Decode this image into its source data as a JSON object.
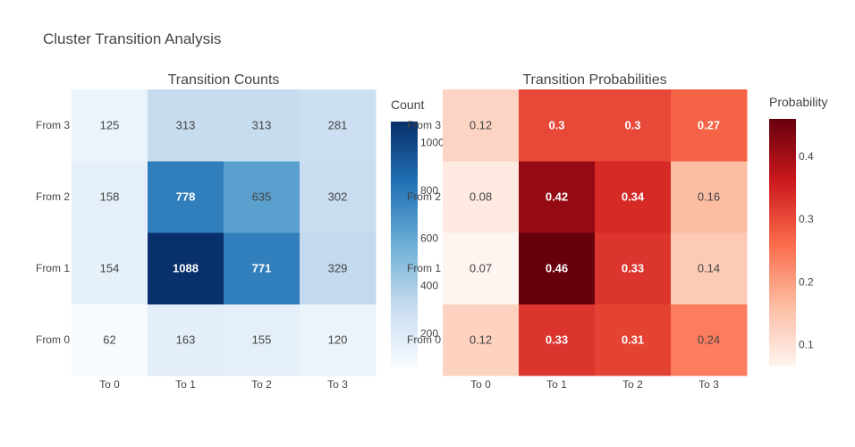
{
  "title": "Cluster Transition Analysis",
  "chart_data": [
    {
      "type": "heatmap",
      "title": "Transition Counts",
      "x_categories": [
        "To 0",
        "To 1",
        "To 2",
        "To 3"
      ],
      "y_categories": [
        "From 0",
        "From 1",
        "From 2",
        "From 3"
      ],
      "z": [
        [
          62,
          163,
          155,
          120
        ],
        [
          154,
          1088,
          771,
          329
        ],
        [
          158,
          778,
          635,
          302
        ],
        [
          125,
          313,
          313,
          281
        ]
      ],
      "cell_labels": [
        [
          "62",
          "163",
          "155",
          "120"
        ],
        [
          "154",
          "1088",
          "771",
          "329"
        ],
        [
          "158",
          "778",
          "635",
          "302"
        ],
        [
          "125",
          "313",
          "313",
          "281"
        ]
      ],
      "colorscale": "Blues",
      "colorscale_stops": [
        "#f7fbff",
        "#c6dbef",
        "#6baed6",
        "#2171b5",
        "#08306b"
      ],
      "zrange": [
        62,
        1088
      ],
      "colorbar": {
        "title": "Count",
        "ticks": [
          200,
          400,
          600,
          800,
          1000
        ],
        "tick_labels": [
          "200",
          "400",
          "600",
          "800",
          "1000"
        ]
      }
    },
    {
      "type": "heatmap",
      "title": "Transition Probabilities",
      "x_categories": [
        "To 0",
        "To 1",
        "To 2",
        "To 3"
      ],
      "y_categories": [
        "From 0",
        "From 1",
        "From 2",
        "From 3"
      ],
      "z": [
        [
          0.124,
          0.326,
          0.31,
          0.24
        ],
        [
          0.065,
          0.46,
          0.326,
          0.139
        ],
        [
          0.084,
          0.415,
          0.339,
          0.161
        ],
        [
          0.121,
          0.303,
          0.303,
          0.272
        ]
      ],
      "cell_labels": [
        [
          "0.12",
          "0.33",
          "0.31",
          "0.24"
        ],
        [
          "0.07",
          "0.46",
          "0.33",
          "0.14"
        ],
        [
          "0.08",
          "0.42",
          "0.34",
          "0.16"
        ],
        [
          "0.12",
          "0.3",
          "0.3",
          "0.27"
        ]
      ],
      "colorscale": "Reds",
      "colorscale_stops": [
        "#fff5f0",
        "#fcbba1",
        "#fb6a4a",
        "#cb181d",
        "#67000d"
      ],
      "zrange": [
        0.065,
        0.46
      ],
      "colorbar": {
        "title": "Probability",
        "ticks": [
          0.1,
          0.2,
          0.3,
          0.4
        ],
        "tick_labels": [
          "0.1",
          "0.2",
          "0.3",
          "0.4"
        ]
      }
    }
  ]
}
